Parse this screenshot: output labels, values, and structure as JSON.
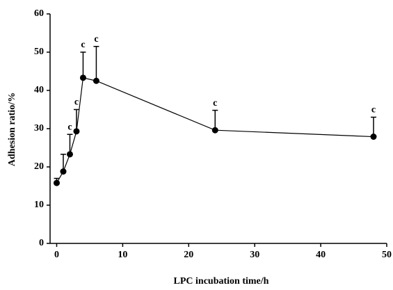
{
  "chart_data": {
    "type": "line",
    "xlabel": "LPC incubation time/h",
    "ylabel": "Adhesion ratio/%",
    "x": [
      0,
      1,
      2,
      3,
      4,
      6,
      24,
      48
    ],
    "series": [
      {
        "color": "#000000",
        "values": [
          15.8,
          18.8,
          23.3,
          29.3,
          43.3,
          42.5,
          29.6,
          27.9
        ],
        "errors": [
          1.2,
          4.5,
          5.2,
          5.7,
          6.7,
          9.0,
          5.2,
          5.1
        ],
        "markers": [
          null,
          null,
          "c",
          "c",
          "c",
          "c",
          "c",
          "c"
        ]
      }
    ],
    "xlim": [
      -1,
      50
    ],
    "xticks": [
      0,
      10,
      20,
      30,
      40,
      50
    ],
    "ylim": [
      0,
      60
    ],
    "yticks": [
      0,
      10,
      20,
      30,
      40,
      50,
      60
    ],
    "grid": false
  }
}
